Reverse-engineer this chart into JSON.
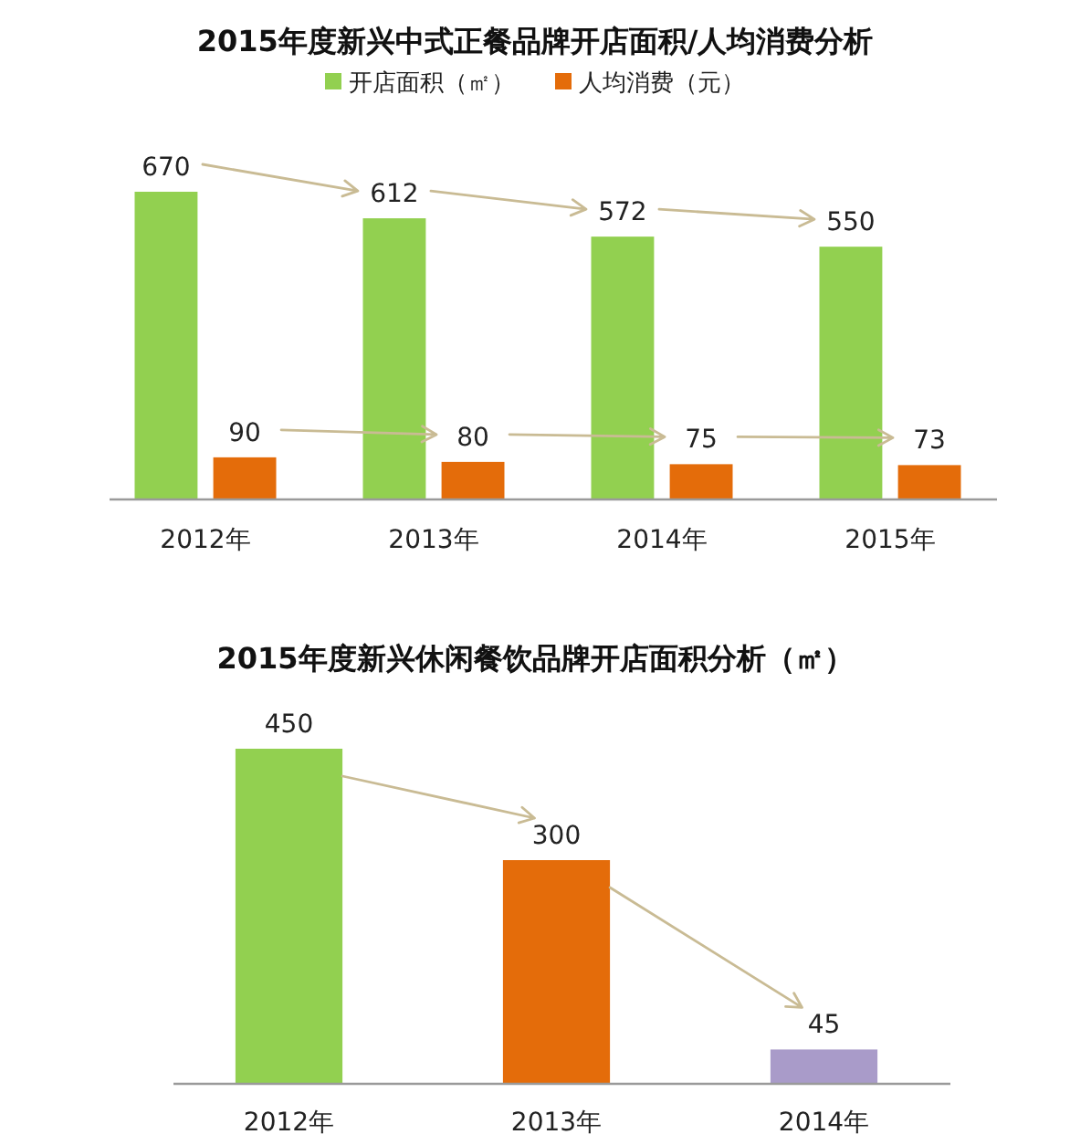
{
  "chart_data": [
    {
      "type": "bar",
      "title": "2015年度新兴中式正餐品牌开店面积/人均消费分析",
      "categories": [
        "2012年",
        "2013年",
        "2014年",
        "2015年"
      ],
      "series": [
        {
          "name": "开店面积（㎡）",
          "color": "#92d050",
          "values": [
            670,
            612,
            572,
            550
          ]
        },
        {
          "name": "人均消费（元）",
          "color": "#e46c0a",
          "values": [
            90,
            80,
            75,
            73
          ]
        }
      ],
      "legend": "top",
      "data_labels": true
    },
    {
      "type": "bar",
      "title": "2015年度新兴休闲餐饮品牌开店面积分析（㎡）",
      "categories": [
        "2012年",
        "2013年",
        "2014年"
      ],
      "values": [
        450,
        300,
        45
      ],
      "colors": [
        "#92d050",
        "#e46c0a",
        "#a99bc9"
      ],
      "data_labels": true
    }
  ]
}
